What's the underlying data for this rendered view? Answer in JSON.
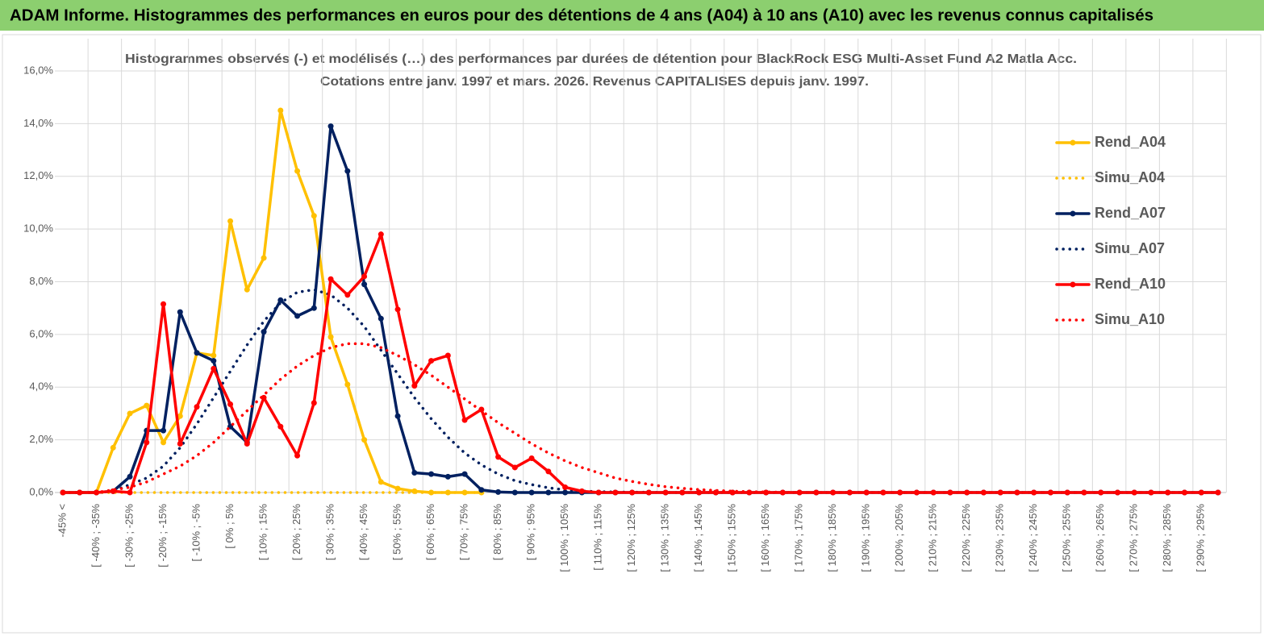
{
  "header": {
    "title": "ADAM Informe. Histogrammes des performances en euros pour des détentions de 4 ans (A04) à 10 ans (A10) avec les revenus connus capitalisés"
  },
  "chart_data": {
    "type": "line",
    "title": "Histogrammes observés (-) et modélisés (…) des performances par durées de détention pour BlackRock ESG Multi-Asset Fund A2 Matla Acc.",
    "subtitle": "Cotations entre janv. 1997 et mars. 2026. Revenus CAPITALISES depuis janv. 1997.",
    "categories": [
      "-45% <",
      null,
      "[ -40% ; -35%",
      null,
      "[ -30% ; -25%",
      null,
      "[ -20% ; -15%",
      null,
      "[ -10% ; -5%",
      null,
      "[ 0% ; 5%",
      null,
      "[ 10% ; 15%",
      null,
      "[ 20% ; 25%",
      null,
      "[ 30% ; 35%",
      null,
      "[ 40% ; 45%",
      null,
      "[ 50% ; 55%",
      null,
      "[ 60% ; 65%",
      null,
      "[ 70% ; 75%",
      null,
      "[ 80% ; 85%",
      null,
      "[ 90% ; 95%",
      null,
      "[ 100% ; 105%",
      null,
      "[ 110% ; 115%",
      null,
      "[ 120% ; 125%",
      null,
      "[ 130% ; 135%",
      null,
      "[ 140% ; 145%",
      null,
      "[ 150% ; 155%",
      null,
      "[ 160% ; 165%",
      null,
      "[ 170% ; 175%",
      null,
      "[ 180% ; 185%",
      null,
      "[ 190% ; 195%",
      null,
      "[ 200% ; 205%",
      null,
      "[ 210% ; 215%",
      null,
      "[ 220% ; 225%",
      null,
      "[ 230% ; 235%",
      null,
      "[ 240% ; 245%",
      null,
      "[ 250% ; 255%",
      null,
      "[ 260% ; 265%",
      null,
      "[ 270% ; 275%",
      null,
      "[ 280% ; 285%",
      null,
      "[ 290% ; 295%",
      null
    ],
    "series": [
      {
        "name": "Rend_A04",
        "color": "#FFC000",
        "line_style": "solid",
        "markers": true,
        "values": [
          0,
          0,
          0,
          1.7,
          3.0,
          3.3,
          1.9,
          2.9,
          5.3,
          5.2,
          10.3,
          7.7,
          8.9,
          14.5,
          12.2,
          10.5,
          5.9,
          4.1,
          2.0,
          0.4,
          0.15,
          0.05,
          0,
          0,
          0,
          0,
          null,
          null,
          null,
          null,
          null,
          null,
          null,
          null,
          null,
          null,
          null,
          null,
          null,
          null,
          null,
          null,
          null,
          null,
          null,
          null,
          null,
          null,
          null,
          null,
          null,
          null,
          null,
          null,
          null,
          null,
          null,
          null,
          null,
          null,
          null,
          null,
          null,
          null,
          null,
          null,
          null,
          null,
          null,
          null
        ]
      },
      {
        "name": "Simu_A04",
        "color": "#FFC000",
        "line_style": "dotted",
        "markers": false,
        "values": [
          0,
          0,
          0,
          0,
          0,
          0,
          0,
          0,
          0,
          0,
          0,
          0,
          0,
          0,
          0,
          0,
          0,
          0,
          0,
          0,
          0,
          0,
          0,
          0,
          0,
          0,
          null,
          null,
          null,
          null,
          null,
          null,
          null,
          null,
          null,
          null,
          null,
          null,
          null,
          null,
          null,
          null,
          null,
          null,
          null,
          null,
          null,
          null,
          null,
          null,
          null,
          null,
          null,
          null,
          null,
          null,
          null,
          null,
          null,
          null,
          null,
          null,
          null,
          null,
          null,
          null,
          null,
          null,
          null,
          null
        ]
      },
      {
        "name": "Rend_A07",
        "color": "#002060",
        "line_style": "solid",
        "markers": true,
        "values": [
          0,
          0,
          0,
          0.05,
          0.6,
          2.35,
          2.35,
          6.85,
          5.3,
          5.0,
          2.5,
          1.9,
          6.1,
          7.3,
          6.7,
          7.0,
          13.9,
          12.2,
          7.9,
          6.6,
          2.9,
          0.75,
          0.7,
          0.6,
          0.7,
          0.1,
          0.02,
          0,
          0,
          0,
          0,
          0,
          0,
          0,
          0,
          0,
          0,
          0,
          0,
          0,
          0,
          0,
          0,
          0,
          0,
          0,
          0,
          0,
          0,
          0,
          0,
          0,
          0,
          0,
          0,
          0,
          0,
          0,
          0,
          0,
          0,
          0,
          0,
          0,
          0,
          0,
          0,
          0,
          0,
          0
        ]
      },
      {
        "name": "Simu_A07",
        "color": "#002060",
        "line_style": "dotted",
        "markers": false,
        "values": [
          0,
          0,
          0,
          0.05,
          0.3,
          0.55,
          1.0,
          1.7,
          2.6,
          3.6,
          4.6,
          5.6,
          6.5,
          7.2,
          7.6,
          7.7,
          7.5,
          7.0,
          6.3,
          5.4,
          4.5,
          3.6,
          2.8,
          2.1,
          1.5,
          1.05,
          0.7,
          0.45,
          0.3,
          0.18,
          0.1,
          0.06,
          0.03,
          0.02,
          0.01,
          0.01,
          0,
          0,
          0,
          0,
          0,
          0,
          0,
          0,
          0,
          0,
          0,
          0,
          0,
          0,
          0,
          0,
          0,
          0,
          0,
          0,
          0,
          0,
          0,
          0,
          0,
          0,
          0,
          0,
          0,
          0,
          0,
          0,
          0,
          0
        ]
      },
      {
        "name": "Rend_A10",
        "color": "#FF0000",
        "line_style": "solid",
        "markers": true,
        "values": [
          0,
          0,
          0,
          0.05,
          0,
          1.9,
          7.15,
          1.85,
          3.25,
          4.7,
          3.35,
          1.85,
          3.6,
          2.5,
          1.4,
          3.4,
          8.1,
          7.5,
          8.2,
          9.8,
          6.95,
          4.05,
          5.0,
          5.2,
          2.75,
          3.15,
          1.35,
          0.95,
          1.3,
          0.8,
          0.2,
          0.05,
          0,
          0,
          0,
          0,
          0,
          0,
          0,
          0,
          0,
          0,
          0,
          0,
          0,
          0,
          0,
          0,
          0,
          0,
          0,
          0,
          0,
          0,
          0,
          0,
          0,
          0,
          0,
          0,
          0,
          0,
          0,
          0,
          0,
          0,
          0,
          0,
          0,
          0
        ]
      },
      {
        "name": "Simu_A10",
        "color": "#FF0000",
        "line_style": "dotted",
        "markers": false,
        "values": [
          0,
          0,
          0,
          0.1,
          0.2,
          0.4,
          0.7,
          1.0,
          1.4,
          1.9,
          2.5,
          3.1,
          3.7,
          4.3,
          4.8,
          5.2,
          5.5,
          5.65,
          5.65,
          5.5,
          5.2,
          4.85,
          4.45,
          4.0,
          3.55,
          3.1,
          2.65,
          2.25,
          1.85,
          1.5,
          1.2,
          0.95,
          0.75,
          0.55,
          0.42,
          0.31,
          0.22,
          0.16,
          0.11,
          0.08,
          0.05,
          0.03,
          0.02,
          0.01,
          0,
          0,
          0,
          0,
          0,
          0,
          0,
          0,
          0,
          0,
          0,
          0,
          0,
          0,
          0,
          0,
          0,
          0,
          0,
          0,
          0,
          0,
          0,
          0,
          0,
          0
        ]
      }
    ],
    "ylim": [
      0,
      16
    ],
    "yticks": [
      {
        "value": 0,
        "label": "0,0%"
      },
      {
        "value": 2,
        "label": "2,0%"
      },
      {
        "value": 4,
        "label": "4,0%"
      },
      {
        "value": 6,
        "label": "6,0%"
      },
      {
        "value": 8,
        "label": "8,0%"
      },
      {
        "value": 10,
        "label": "10,0%"
      },
      {
        "value": 12,
        "label": "12,0%"
      },
      {
        "value": 14,
        "label": "14,0%"
      },
      {
        "value": 16,
        "label": "16,0%"
      }
    ],
    "grid": true,
    "legend": "right"
  }
}
